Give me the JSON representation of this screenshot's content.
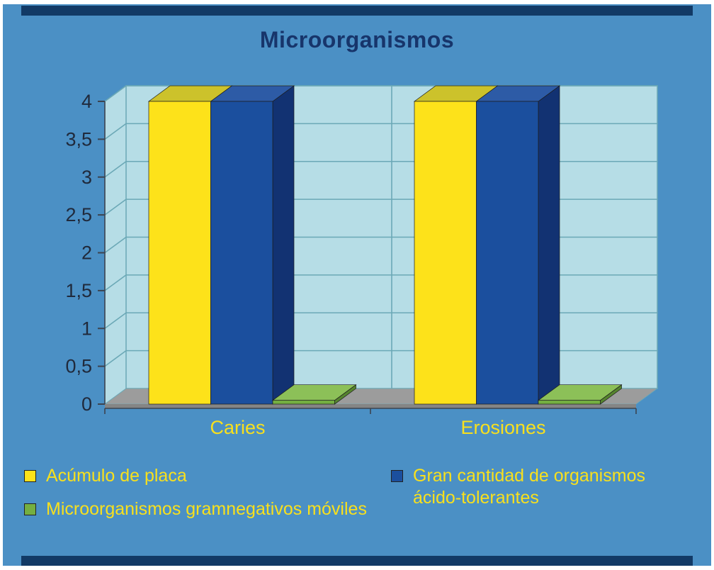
{
  "chart_data": {
    "type": "bar",
    "style": "3d",
    "title": "Microorganismos",
    "categories": [
      "Caries",
      "Erosiones"
    ],
    "series": [
      {
        "name": "Acúmulo de placa",
        "values": [
          4,
          4
        ],
        "color": "#fde21a",
        "top_color": "#ccc22b",
        "side_color": "#b9a400"
      },
      {
        "name": "Gran cantidad de organismos ácido-tolerantes",
        "values": [
          4,
          4
        ],
        "color": "#1b4f9e",
        "top_color": "#2d5ba6",
        "side_color": "#123272"
      },
      {
        "name": "Microorganismos gramnegativos móviles",
        "values": [
          0.05,
          0.05
        ],
        "color": "#74af41",
        "top_color": "#8cc058",
        "side_color": "#55842e"
      }
    ],
    "ylim": [
      0,
      4
    ],
    "ytick_step": 0.5,
    "ytick_labels": [
      "0",
      "0,5",
      "1",
      "1,5",
      "2",
      "2,5",
      "3",
      "3,5",
      "4"
    ],
    "grid": true,
    "legend_position": "bottom"
  },
  "colors": {
    "slide_background": "#4b90c5",
    "border_bars": "#123a66",
    "title_text": "#17356b",
    "plot_wall": "#b6dde6",
    "grid_line": "#6ba8b6",
    "floor": "#9c9c9c",
    "floor_front": "#858585",
    "axis_text": "#202a3c",
    "axis_line": "#3c4450",
    "category_text": "#f8e01d",
    "legend_text": "#f8e01d"
  }
}
